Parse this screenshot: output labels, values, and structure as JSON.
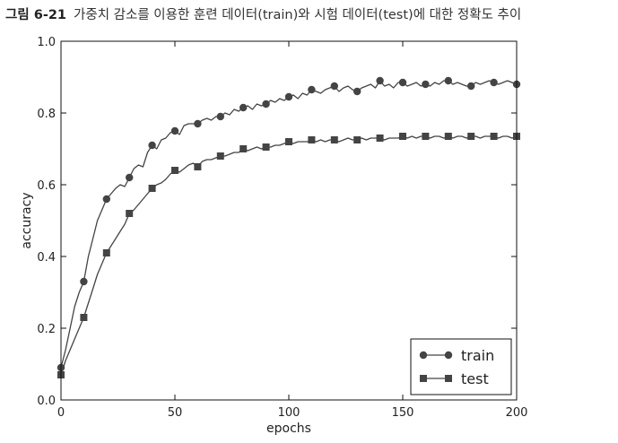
{
  "caption": {
    "label": "그림 6-21",
    "text": "가중치 감소를 이용한 훈련 데이터(train)와 시험 데이터(test)에 대한 정확도 추이"
  },
  "chart_data": {
    "type": "line",
    "xlabel": "epochs",
    "ylabel": "accuracy",
    "xlim": [
      0,
      200
    ],
    "ylim": [
      0.0,
      1.0
    ],
    "xticks": [
      0,
      50,
      100,
      150,
      200
    ],
    "yticks": [
      0.0,
      0.2,
      0.4,
      0.6,
      0.8,
      1.0
    ],
    "grid": false,
    "legend_position": "bottom-right",
    "series": [
      {
        "name": "train",
        "marker": "circle",
        "color": "#444444",
        "x": [
          0,
          2,
          4,
          6,
          8,
          10,
          12,
          14,
          16,
          18,
          20,
          22,
          24,
          26,
          28,
          30,
          32,
          34,
          36,
          38,
          40,
          42,
          44,
          46,
          48,
          50,
          52,
          54,
          56,
          58,
          60,
          62,
          64,
          66,
          68,
          70,
          72,
          74,
          76,
          78,
          80,
          82,
          84,
          86,
          88,
          90,
          92,
          94,
          96,
          98,
          100,
          102,
          104,
          106,
          108,
          110,
          112,
          114,
          116,
          118,
          120,
          122,
          124,
          126,
          128,
          130,
          132,
          134,
          136,
          138,
          140,
          142,
          144,
          146,
          148,
          150,
          152,
          154,
          156,
          158,
          160,
          162,
          164,
          166,
          168,
          170,
          172,
          174,
          176,
          178,
          180,
          182,
          184,
          186,
          188,
          190,
          192,
          194,
          196,
          198,
          200
        ],
        "values": [
          0.09,
          0.14,
          0.2,
          0.26,
          0.3,
          0.33,
          0.4,
          0.45,
          0.5,
          0.53,
          0.56,
          0.575,
          0.59,
          0.6,
          0.595,
          0.62,
          0.645,
          0.655,
          0.65,
          0.69,
          0.71,
          0.7,
          0.725,
          0.73,
          0.745,
          0.75,
          0.74,
          0.765,
          0.77,
          0.77,
          0.77,
          0.78,
          0.785,
          0.78,
          0.79,
          0.79,
          0.8,
          0.795,
          0.81,
          0.805,
          0.815,
          0.82,
          0.81,
          0.825,
          0.82,
          0.825,
          0.835,
          0.83,
          0.84,
          0.835,
          0.845,
          0.85,
          0.84,
          0.855,
          0.85,
          0.865,
          0.86,
          0.855,
          0.865,
          0.87,
          0.875,
          0.86,
          0.87,
          0.875,
          0.865,
          0.86,
          0.87,
          0.875,
          0.88,
          0.87,
          0.89,
          0.875,
          0.88,
          0.87,
          0.885,
          0.885,
          0.875,
          0.88,
          0.885,
          0.875,
          0.88,
          0.875,
          0.885,
          0.88,
          0.89,
          0.89,
          0.88,
          0.885,
          0.88,
          0.875,
          0.875,
          0.885,
          0.88,
          0.885,
          0.89,
          0.885,
          0.88,
          0.885,
          0.89,
          0.885,
          0.88
        ],
        "marker_every": 10
      },
      {
        "name": "test",
        "marker": "square",
        "color": "#444444",
        "x": [
          0,
          2,
          4,
          6,
          8,
          10,
          12,
          14,
          16,
          18,
          20,
          22,
          24,
          26,
          28,
          30,
          32,
          34,
          36,
          38,
          40,
          42,
          44,
          46,
          48,
          50,
          52,
          54,
          56,
          58,
          60,
          62,
          64,
          66,
          68,
          70,
          72,
          74,
          76,
          78,
          80,
          82,
          84,
          86,
          88,
          90,
          92,
          94,
          96,
          98,
          100,
          102,
          104,
          106,
          108,
          110,
          112,
          114,
          116,
          118,
          120,
          122,
          124,
          126,
          128,
          130,
          132,
          134,
          136,
          138,
          140,
          142,
          144,
          146,
          148,
          150,
          152,
          154,
          156,
          158,
          160,
          162,
          164,
          166,
          168,
          170,
          172,
          174,
          176,
          178,
          180,
          182,
          184,
          186,
          188,
          190,
          192,
          194,
          196,
          198,
          200
        ],
        "values": [
          0.07,
          0.11,
          0.14,
          0.17,
          0.2,
          0.23,
          0.27,
          0.31,
          0.35,
          0.38,
          0.41,
          0.43,
          0.45,
          0.47,
          0.49,
          0.52,
          0.53,
          0.545,
          0.56,
          0.575,
          0.59,
          0.6,
          0.605,
          0.615,
          0.63,
          0.64,
          0.635,
          0.645,
          0.655,
          0.66,
          0.65,
          0.665,
          0.67,
          0.67,
          0.675,
          0.68,
          0.68,
          0.685,
          0.69,
          0.69,
          0.7,
          0.695,
          0.7,
          0.705,
          0.7,
          0.705,
          0.705,
          0.71,
          0.71,
          0.715,
          0.72,
          0.715,
          0.72,
          0.72,
          0.72,
          0.725,
          0.72,
          0.725,
          0.72,
          0.725,
          0.725,
          0.72,
          0.725,
          0.73,
          0.725,
          0.725,
          0.73,
          0.725,
          0.73,
          0.73,
          0.73,
          0.725,
          0.73,
          0.73,
          0.73,
          0.735,
          0.73,
          0.735,
          0.73,
          0.735,
          0.735,
          0.73,
          0.735,
          0.735,
          0.73,
          0.735,
          0.73,
          0.735,
          0.735,
          0.73,
          0.735,
          0.735,
          0.73,
          0.735,
          0.735,
          0.735,
          0.73,
          0.735,
          0.735,
          0.73,
          0.735
        ],
        "marker_every": 10
      }
    ]
  }
}
